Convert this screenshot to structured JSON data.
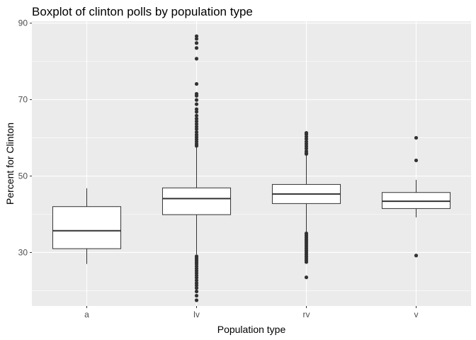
{
  "chart_data": {
    "type": "boxplot",
    "title": "Boxplot of clinton polls by population type",
    "xlabel": "Population type",
    "ylabel": "Percent for Clinton",
    "ylim": [
      16,
      90.5
    ],
    "yticks": [
      30,
      50,
      70,
      90
    ],
    "grid": true,
    "categories": [
      "a",
      "lv",
      "rv",
      "v"
    ],
    "boxes": [
      {
        "category": "a",
        "whisker_low": 27.0,
        "q1": 31.0,
        "median": 35.7,
        "q3": 42.0,
        "whisker_high": 46.8,
        "outliers": []
      },
      {
        "category": "lv",
        "whisker_low": 29.5,
        "q1": 39.9,
        "median": 44.1,
        "q3": 46.9,
        "whisker_high": 57.5,
        "outliers": [
          86.6,
          85.9,
          84.8,
          83.5,
          80.7,
          74.1,
          71.5,
          71.0,
          69.9,
          68.8,
          67.5,
          66.8,
          65.8,
          65.0,
          64.3,
          63.6,
          62.9,
          62.3,
          61.5,
          60.8,
          60.2,
          59.6,
          59.0,
          58.4,
          57.9,
          29.0,
          28.5,
          28.0,
          27.5,
          27.0,
          26.4,
          25.8,
          25.2,
          24.6,
          24.0,
          23.4,
          22.7,
          22.0,
          21.4,
          20.7,
          19.8,
          18.7,
          17.5
        ]
      },
      {
        "category": "rv",
        "whisker_low": 35.0,
        "q1": 42.8,
        "median": 45.3,
        "q3": 47.8,
        "whisker_high": 55.5,
        "outliers": [
          61.3,
          60.9,
          60.3,
          59.7,
          59.0,
          58.4,
          57.8,
          57.2,
          56.5,
          56.0,
          55.8,
          35.0,
          34.5,
          34.0,
          33.5,
          33.0,
          32.5,
          32.0,
          31.5,
          31.0,
          30.5,
          30.0,
          29.5,
          29.0,
          28.5,
          28.0,
          27.5,
          23.5
        ]
      },
      {
        "category": "v",
        "whisker_low": 39.2,
        "q1": 41.5,
        "median": 43.4,
        "q3": 45.7,
        "whisker_high": 49.0,
        "outliers": [
          60.0,
          54.1,
          29.2
        ]
      }
    ]
  }
}
